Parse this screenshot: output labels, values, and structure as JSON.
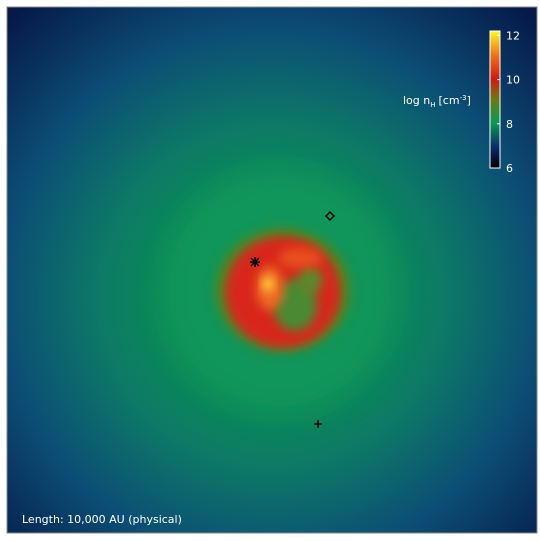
{
  "colorbar": {
    "label": {
      "main": "log n",
      "sub": "H",
      "unit": "[cm",
      "sup": "-3",
      "close": "]"
    },
    "lim": [
      6,
      12.2
    ],
    "ticks": [
      6,
      8,
      10,
      12
    ]
  },
  "annotation": "Length: 10,000 AU (physical)"
}
